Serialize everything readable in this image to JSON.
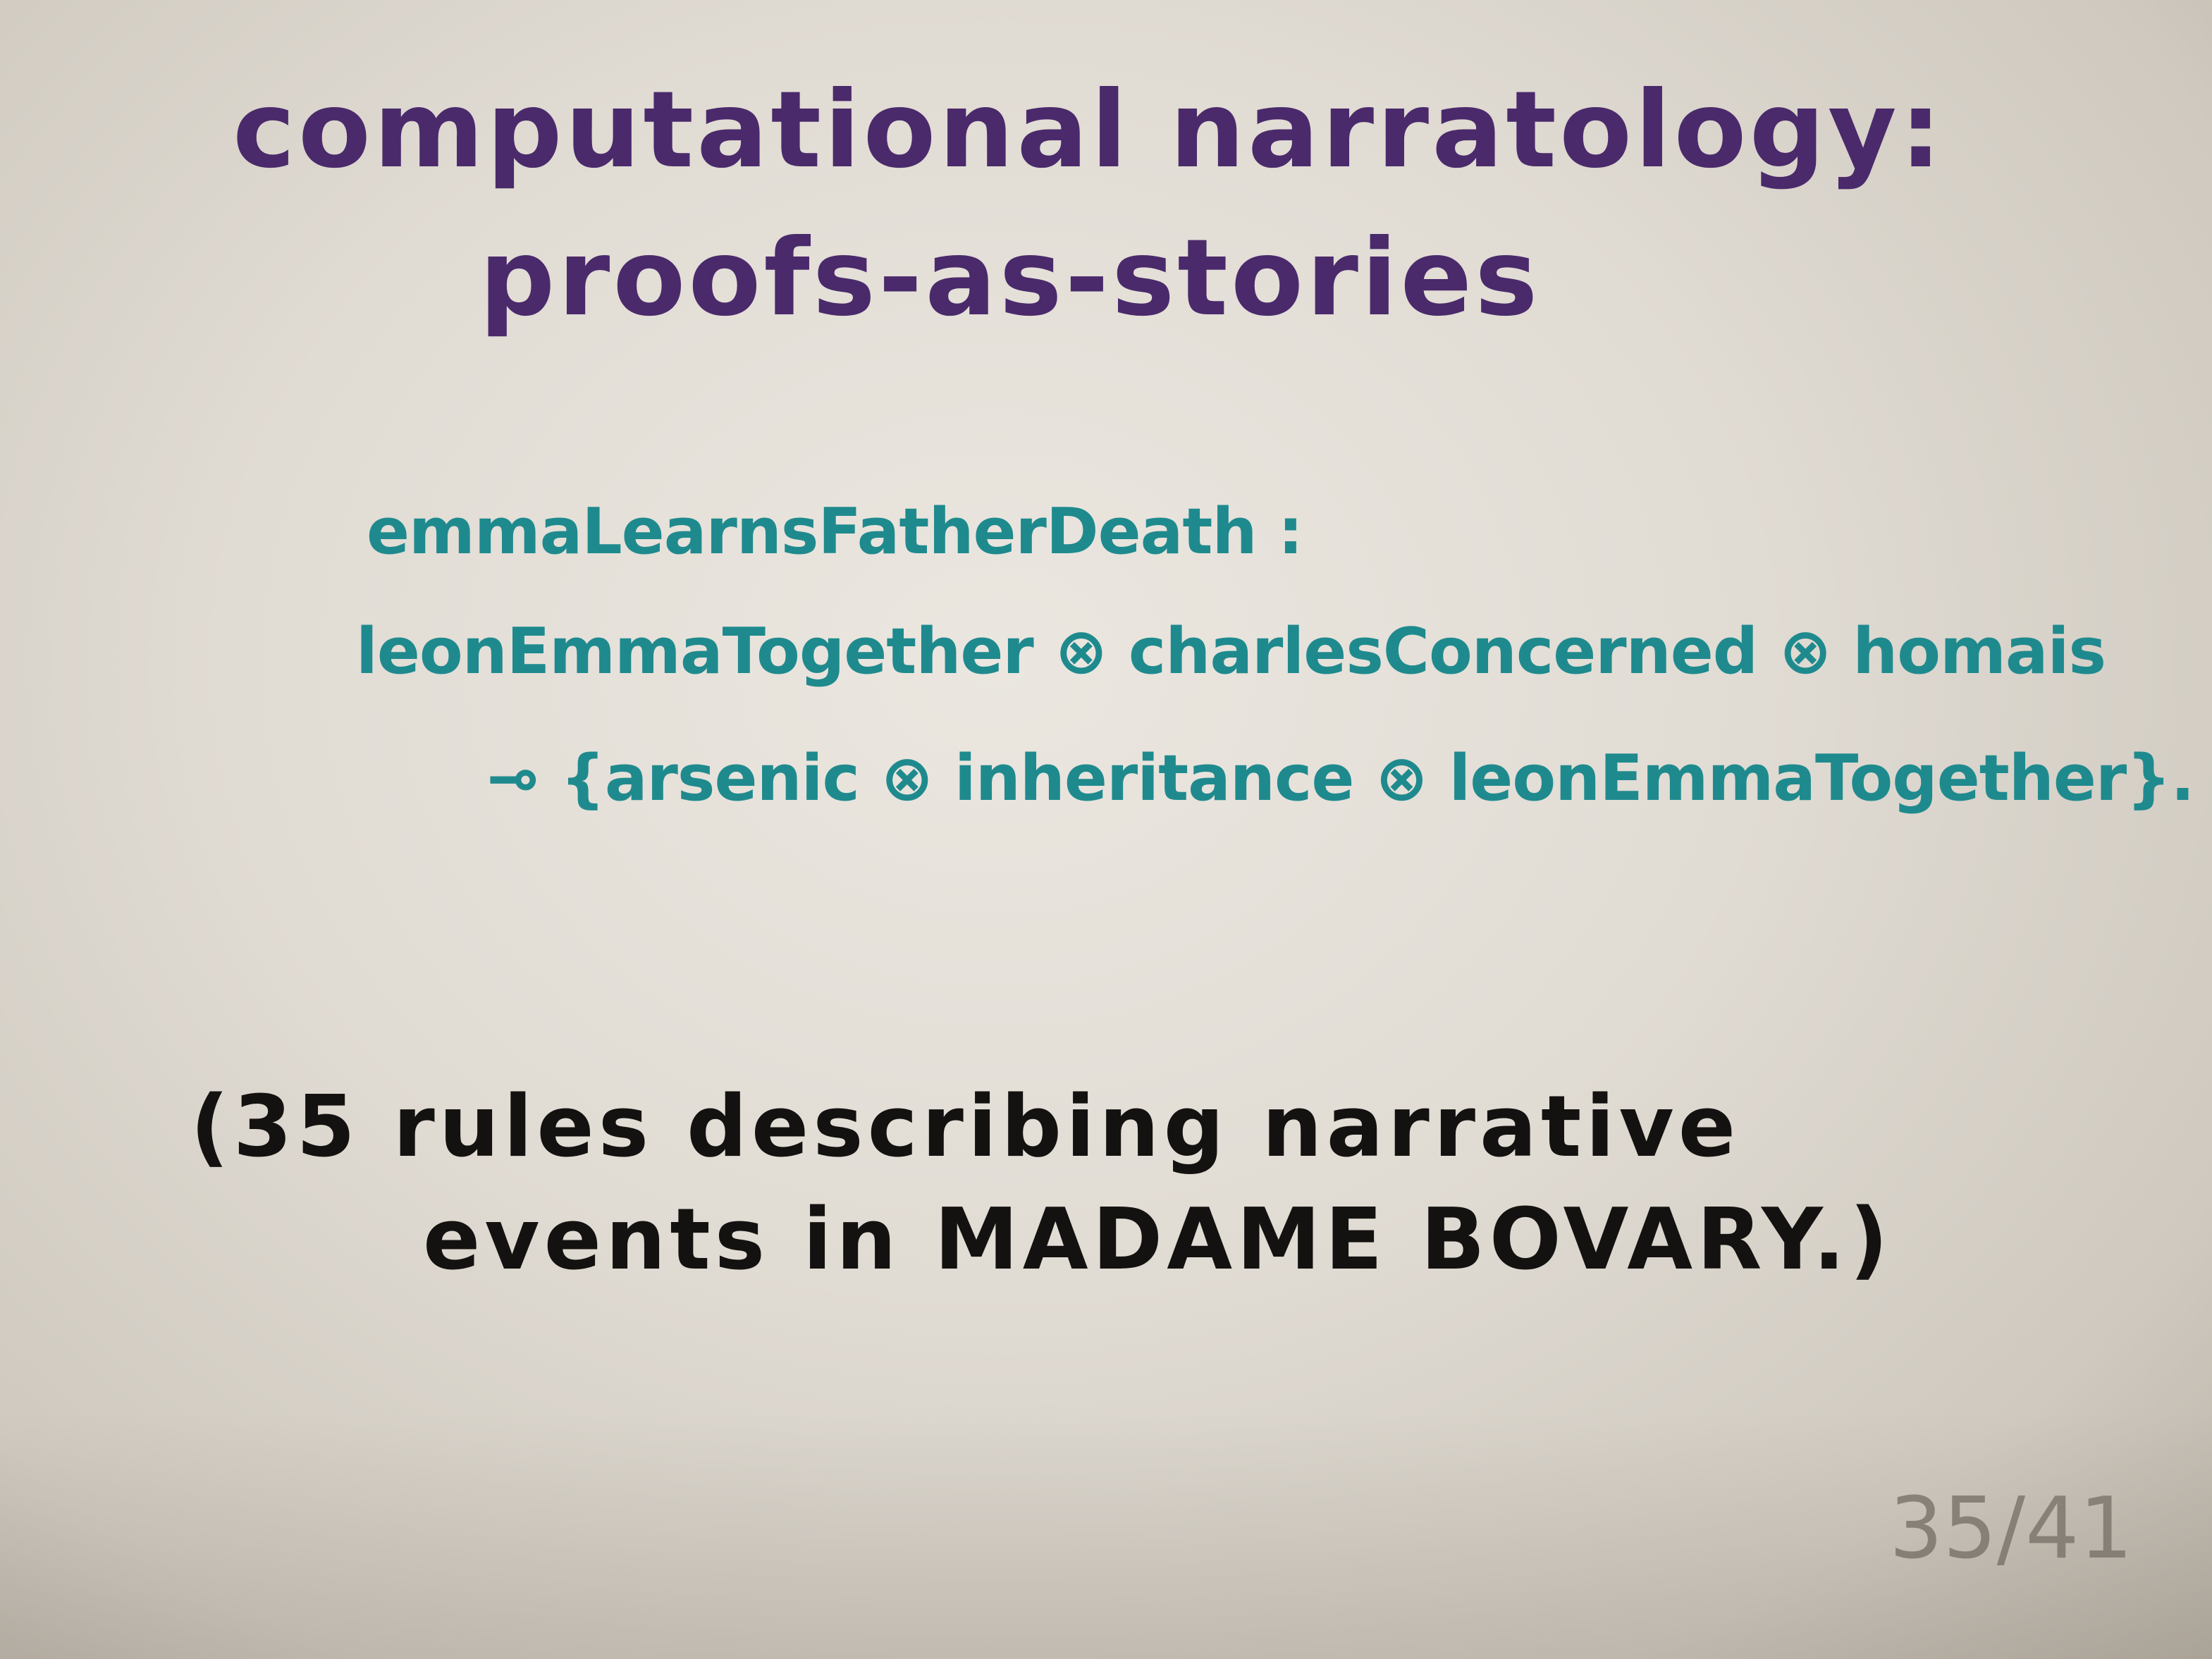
{
  "slide": {
    "title_line_1": "computational narratology:",
    "title_line_2": "proofs-as-stories",
    "rule_line_1": "emmaLearnsFatherDeath :",
    "rule_line_2": "leonEmmaTogether ⊗ charlesConcerned ⊗ homais",
    "rule_line_3": "⊸ {arsenic ⊗ inheritance ⊗ leonEmmaTogether}.",
    "note_line_1": "(35 rules describing narrative",
    "note_line_2": "events in MADAME BOVARY.)",
    "page_number": "35/41"
  },
  "colors": {
    "title": "#4a2a6b",
    "rule": "#1f8a8e",
    "note": "#141210",
    "page_number": "#8b857c",
    "paper": "#e4e0d8"
  }
}
